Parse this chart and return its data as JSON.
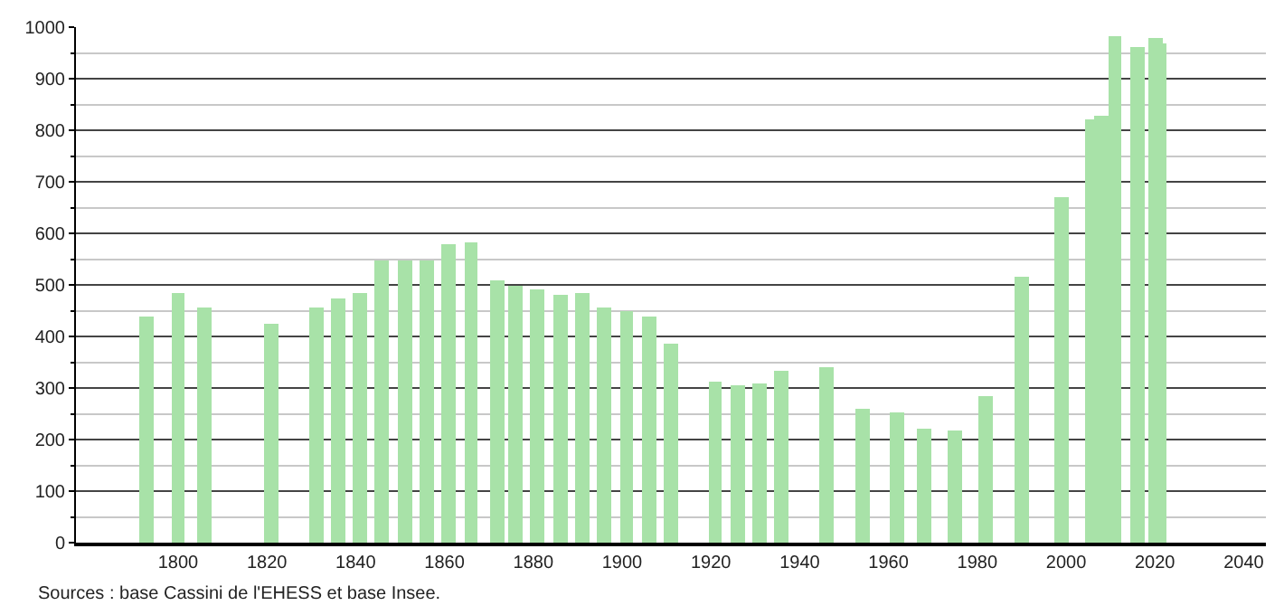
{
  "chart_data": {
    "type": "bar",
    "x": [
      1793,
      1800,
      1806,
      1821,
      1831,
      1836,
      1841,
      1846,
      1851,
      1856,
      1861,
      1866,
      1872,
      1876,
      1881,
      1886,
      1891,
      1896,
      1901,
      1906,
      1911,
      1921,
      1926,
      1931,
      1936,
      1946,
      1954,
      1962,
      1968,
      1975,
      1982,
      1990,
      1999,
      2006,
      2008,
      2011,
      2016,
      2020,
      2021
    ],
    "values": [
      440,
      485,
      457,
      424,
      457,
      475,
      485,
      546,
      546,
      546,
      578,
      583,
      510,
      499,
      492,
      479,
      485,
      457,
      450,
      438,
      386,
      313,
      307,
      310,
      333,
      341,
      259,
      252,
      221,
      217,
      283,
      517,
      669,
      821,
      828,
      983,
      962,
      979,
      969
    ],
    "color": "#a8e2a8",
    "xlim": [
      1777,
      2045
    ],
    "xticks": [
      1800,
      1820,
      1840,
      1860,
      1880,
      1900,
      1920,
      1940,
      1960,
      1980,
      2000,
      2020,
      2040
    ],
    "ylim": [
      0,
      1000
    ],
    "yticks": [
      0,
      100,
      200,
      300,
      400,
      500,
      600,
      700,
      800,
      900,
      1000
    ],
    "grid": "y",
    "annotations": [
      "Sources : base Cassini de l'EHESS et base Insee."
    ]
  }
}
